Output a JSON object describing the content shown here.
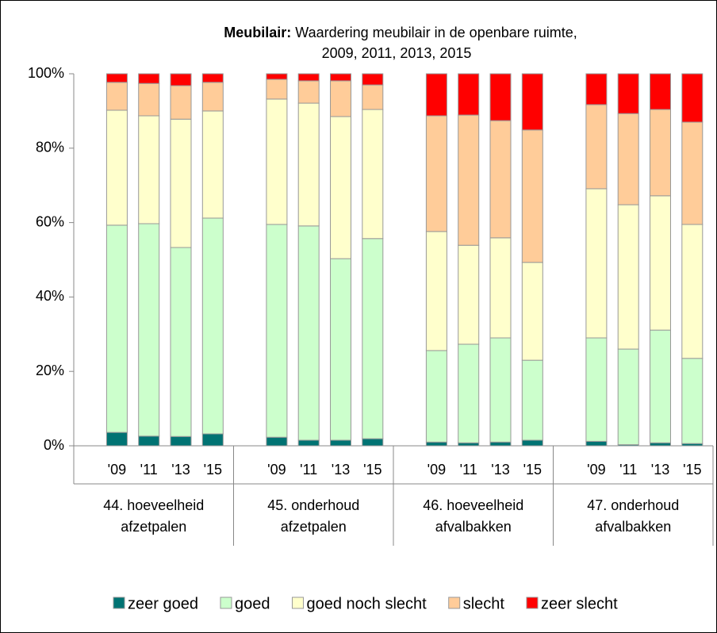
{
  "chart_data": {
    "type": "stacked_bar",
    "title": {
      "bold": "Meubilair:",
      "lines": [
        "Waardering meubilair in de openbare ruimte,",
        "2009, 2011, 2013, 2015"
      ]
    },
    "categories": [
      "'09",
      "'11",
      "'13",
      "'15",
      "'09",
      "'11",
      "'13",
      "'15",
      "'09",
      "'11",
      "'13",
      "'15",
      "'09",
      "'11",
      "'13",
      "'15"
    ],
    "groups": [
      {
        "lines": [
          "44. hoeveelheid",
          "afzetpalen"
        ]
      },
      {
        "lines": [
          "45. onderhoud",
          "afzetpalen"
        ]
      },
      {
        "lines": [
          "46. hoeveelheid",
          "afvalbakken"
        ]
      },
      {
        "lines": [
          "47. onderhoud",
          "afvalbakken"
        ]
      }
    ],
    "series": [
      {
        "name": "zeer goed",
        "color": "#007373",
        "values": [
          3.6,
          2.6,
          2.5,
          3.2,
          2.3,
          1.5,
          1.5,
          1.9,
          1.0,
          0.8,
          1.0,
          1.5,
          1.2,
          0.3,
          0.8,
          0.6
        ]
      },
      {
        "name": "goed",
        "color": "#ccffcc",
        "values": [
          55.7,
          57.1,
          50.8,
          58.0,
          57.2,
          57.6,
          48.8,
          53.8,
          24.6,
          26.5,
          28.0,
          21.5,
          27.8,
          25.7,
          30.3,
          22.9
        ]
      },
      {
        "name": "goed noch slecht",
        "color": "#ffffcc",
        "values": [
          30.9,
          29.0,
          34.5,
          28.8,
          33.7,
          33.0,
          38.2,
          34.7,
          32.0,
          26.6,
          26.9,
          26.3,
          40.1,
          38.8,
          36.1,
          36.0
        ]
      },
      {
        "name": "slecht",
        "color": "#ffcc99",
        "values": [
          7.5,
          8.7,
          9.0,
          7.7,
          5.3,
          6.0,
          9.6,
          6.6,
          31.1,
          35.0,
          31.5,
          35.6,
          22.6,
          24.5,
          23.2,
          27.5
        ]
      },
      {
        "name": "zeer slecht",
        "color": "#ff0000",
        "values": [
          2.3,
          2.6,
          3.2,
          2.3,
          1.5,
          1.9,
          1.9,
          3.0,
          11.3,
          11.1,
          12.6,
          15.1,
          8.3,
          10.7,
          9.6,
          13.0
        ]
      }
    ],
    "ylim": [
      0,
      100
    ],
    "yticks": [
      {
        "value": 0,
        "label": "0%"
      },
      {
        "value": 20,
        "label": "20%"
      },
      {
        "value": 40,
        "label": "40%"
      },
      {
        "value": 60,
        "label": "60%"
      },
      {
        "value": 80,
        "label": "80%"
      },
      {
        "value": 100,
        "label": "100%"
      }
    ],
    "legend": "bottom"
  }
}
